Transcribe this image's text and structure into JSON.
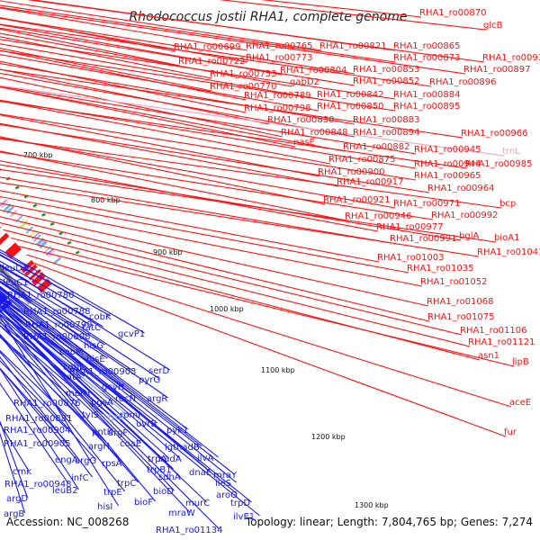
{
  "title": "Rhodococcus jostii RHA1, complete genome",
  "accession": "Accession: NC_008268",
  "topology": "Topology: linear; Length: 7,804,765 bp; Genes: 7,274",
  "colors": {
    "forward": "#ff1010",
    "reverse": "#1a1aee",
    "rna": "#f0a0c8",
    "backbone": "#808080",
    "tick": "#2a8a2a"
  },
  "ticks": [
    "700 kbp",
    "800 kbp",
    "900 kbp",
    "1000 kbp",
    "1100 kbp",
    "1200 kbp",
    "1300 kbp"
  ],
  "forward_labels": [
    "RHA1_ro00870",
    "glcB",
    "RHA1_ro00699",
    "RHA1_ro00765",
    "RHA1_ro00821",
    "RHA1_ro00865",
    "RHA1_ro00919",
    "RHA1_ro00722",
    "RHA1_ro00773",
    "RHA1_ro00873",
    "RHA1_ro00897",
    "RHA1_ro00804",
    "RHA1_ro00853",
    "RHA1_ro00753",
    "gabD2",
    "RHA1_ro00852",
    "RHA1_ro00896",
    "RHA1_ro00770",
    "RHA1_ro00789",
    "RHA1_ro00842",
    "RHA1_ro00884",
    "RHA1_ro00798",
    "RHA1_ro00850",
    "RHA1_ro00895",
    "RHA1_ro00830",
    "RHA1_ro00883",
    "RHA1_ro00848",
    "RHA1_ro00894",
    "RHA1_ro00966",
    "nasE",
    "RHA1_ro00882",
    "RHA1_ro00945",
    "trnL",
    "RHA1_ro00875",
    "RHA1_ro00944",
    "RHA1_ro00985",
    "RHA1_ro00900",
    "RHA1_ro00965",
    "RHA1_ro00917",
    "RHA1_ro00964",
    "RHA1_ro00921",
    "RHA1_ro00971",
    "bcp",
    "RHA1_ro00946",
    "RHA1_ro00992",
    "RHA1_ro00977",
    "bglA",
    "bioA1",
    "RHA1_ro00991",
    "RHA1_ro01041",
    "RHA1_ro01003",
    "RHA1_ro01035",
    "RHA1_ro01052",
    "RHA1_ro01068",
    "RHA1_ro01075",
    "RHA1_ro01106",
    "RHA1_ro01121",
    "asn1",
    "lipB",
    "aceE",
    "fur"
  ],
  "reverse_labels": [
    "leuD1",
    "leuC1",
    "RHA1_ro00780",
    "RHA1_ro00788",
    "cobK",
    "RHA1_ro00799",
    "tatC",
    "RHA1_ro00808",
    "hisG",
    "cobM",
    "hisE",
    "cobL",
    "tatA",
    "gcvP1",
    "RHA1_ro00903",
    "serD",
    "gcvH",
    "pyrG",
    "metH",
    "RHA1_ro00876",
    "recN",
    "argR",
    "pgsA",
    "rpmI",
    "tyiS",
    "uvrB",
    "RHA1_ro00881",
    "RHA1_ro00904",
    "argF",
    "pyk1",
    "trnF",
    "RHA1_ro00905",
    "pntK",
    "argH",
    "coaE",
    "lgtnadB",
    "engA",
    "argG",
    "rpsA",
    "trpA",
    "nadA",
    "cmk",
    "ilvA",
    "RHA1_ro00948",
    "infC",
    "sdhA",
    "dnaE",
    "trpB1",
    "leuB2",
    "trpE",
    "ileS",
    "mraY",
    "trpC",
    "bioD",
    "argD",
    "argB",
    "aroG",
    "murC",
    "trpD",
    "bioF",
    "mraW",
    "ilvE1",
    "hisI",
    "RHA1_ro01134"
  ]
}
